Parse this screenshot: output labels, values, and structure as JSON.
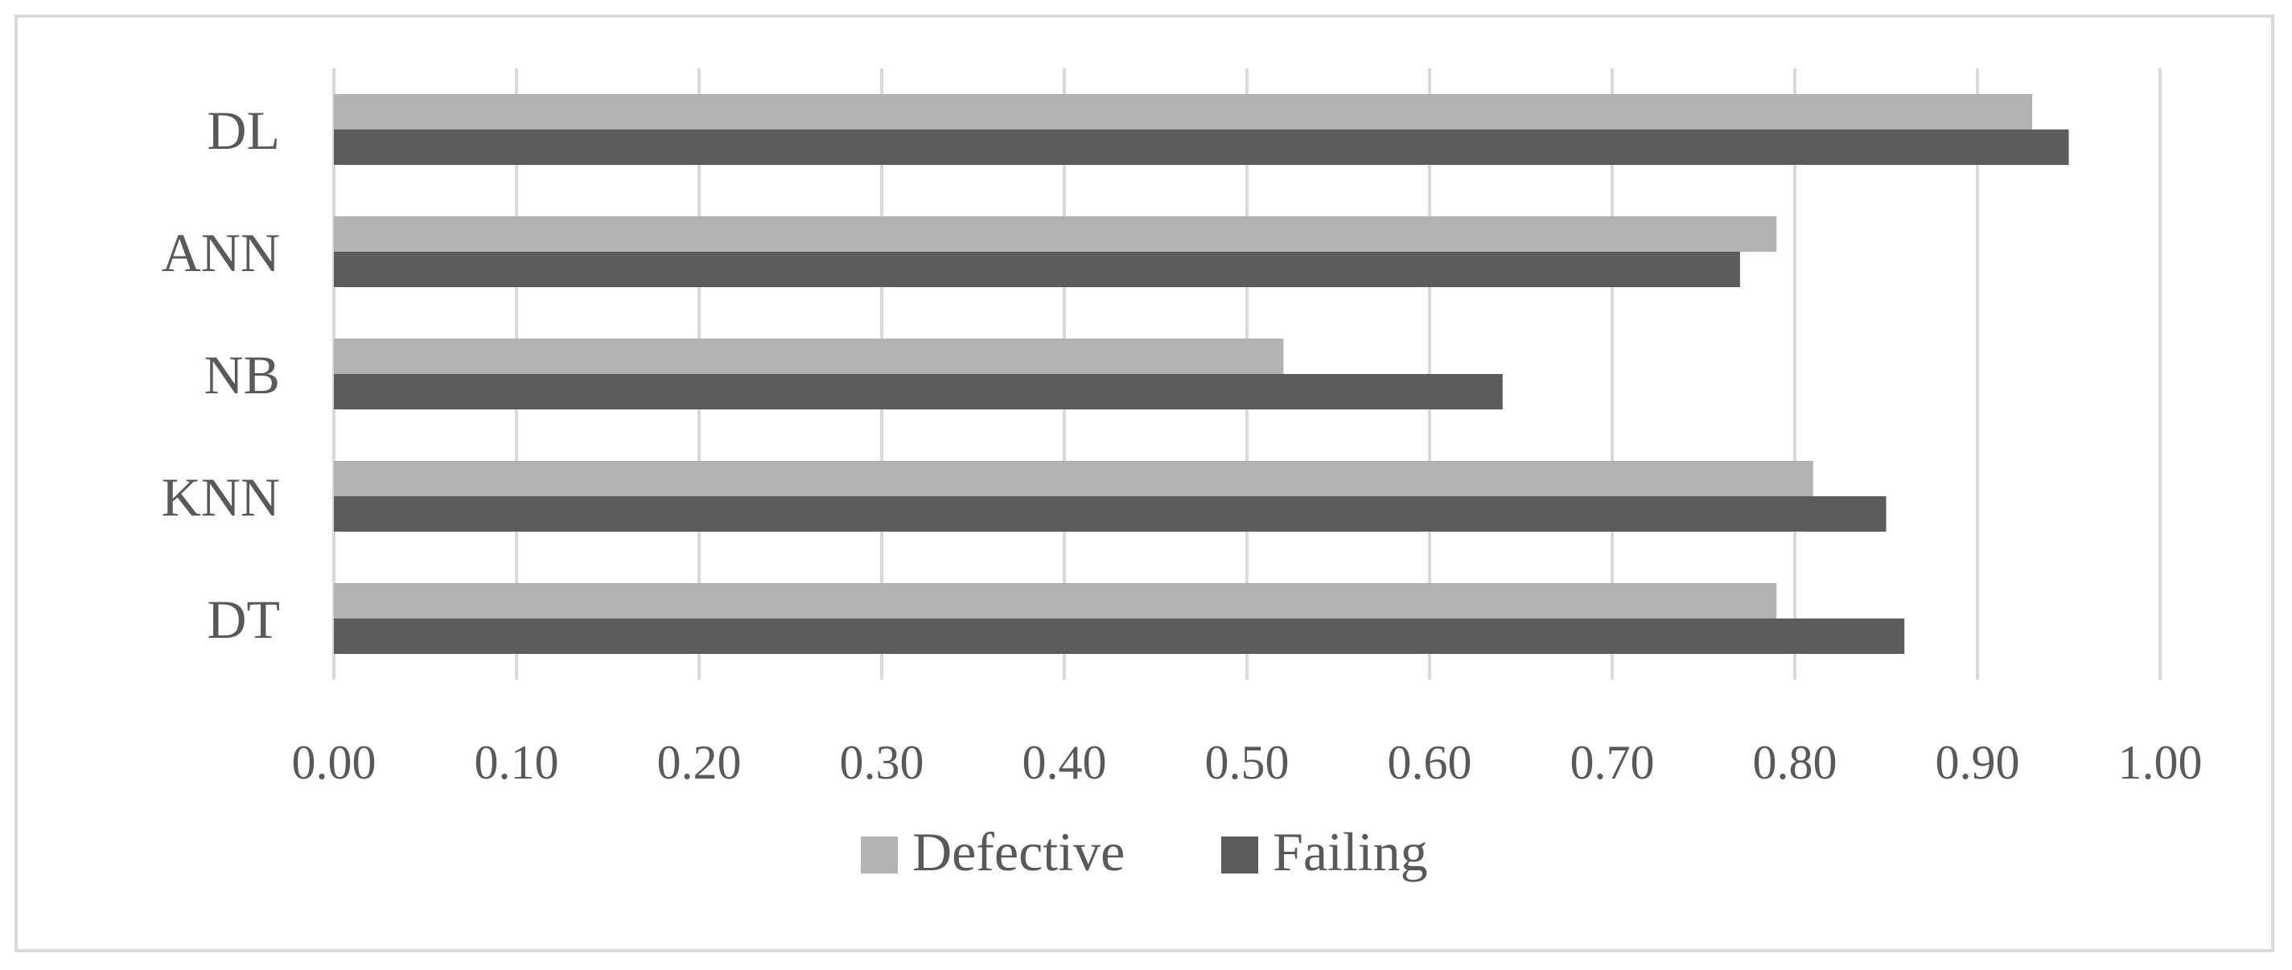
{
  "chart_data": {
    "type": "bar",
    "orientation": "horizontal",
    "categories": [
      "DL",
      "ANN",
      "NB",
      "KNN",
      "DT"
    ],
    "series": [
      {
        "name": "Defective",
        "values": [
          0.93,
          0.79,
          0.52,
          0.81,
          0.79
        ]
      },
      {
        "name": "Failing",
        "values": [
          0.95,
          0.77,
          0.64,
          0.85,
          0.86
        ]
      }
    ],
    "x_ticks": [
      "0.00",
      "0.10",
      "0.20",
      "0.30",
      "0.40",
      "0.50",
      "0.60",
      "0.70",
      "0.80",
      "0.90",
      "1.00"
    ],
    "xlim": [
      0,
      1
    ],
    "title": "",
    "xlabel": "",
    "ylabel": "",
    "grid": "vertical",
    "legend_position": "bottom"
  },
  "colors": {
    "defective": "#b2b2b2",
    "failing": "#5c5c5c",
    "grid": "#d9d9d9",
    "text": "#595959",
    "border": "#d9d9d9"
  }
}
